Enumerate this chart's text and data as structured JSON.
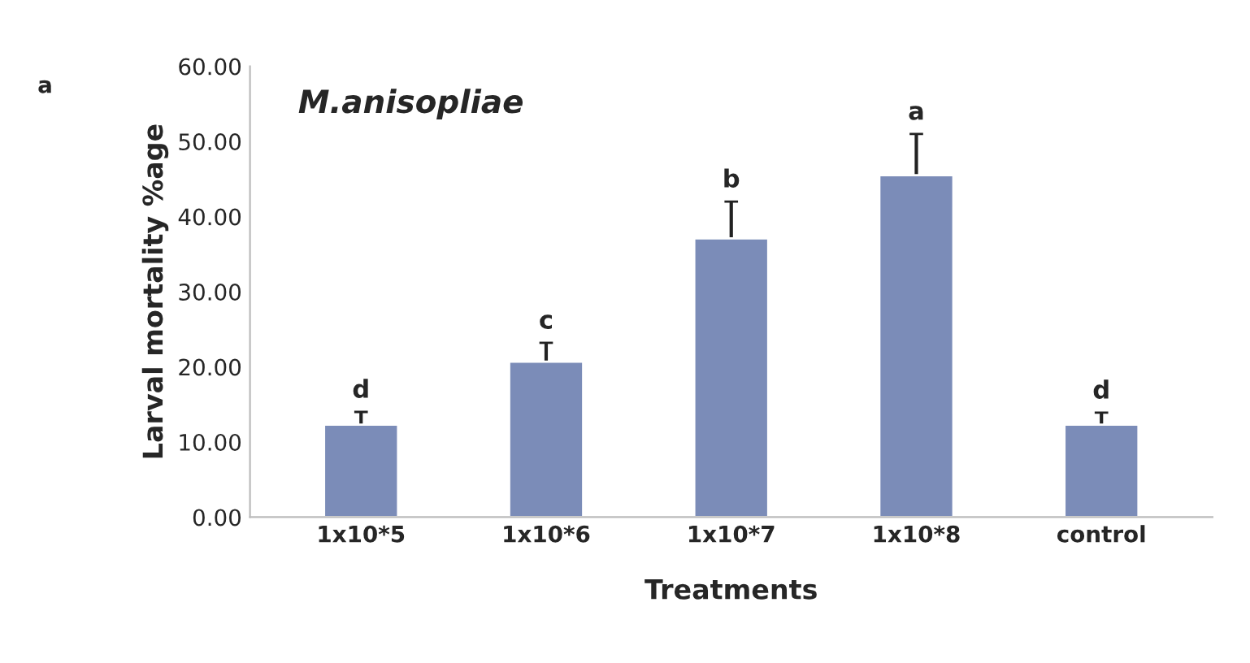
{
  "chart_data": {
    "type": "bar",
    "title": "M.anisopliae",
    "xlabel": "Treatments",
    "ylabel": "Larval mortality %age",
    "categories": [
      "1x10*5",
      "1x10*6",
      "1x10*7",
      "1x10*8",
      "control"
    ],
    "values": [
      12.3,
      20.7,
      37.1,
      45.5,
      12.3
    ],
    "errors": [
      1.7,
      2.5,
      4.9,
      5.5,
      1.6
    ],
    "color": "#7b8cb8",
    "ylim": [
      0,
      60
    ],
    "yticks": [
      {
        "value": 0,
        "label": "0.00"
      },
      {
        "value": 10,
        "label": "10.00"
      },
      {
        "value": 20,
        "label": "20.00"
      },
      {
        "value": 30,
        "label": "30.00"
      },
      {
        "value": 40,
        "label": "40.00"
      },
      {
        "value": 50,
        "label": "50.00"
      },
      {
        "value": 60,
        "label": "60.00"
      }
    ],
    "grid": false,
    "annotations": [
      "d",
      "c",
      "b",
      "a",
      "d",
      "a"
    ]
  }
}
